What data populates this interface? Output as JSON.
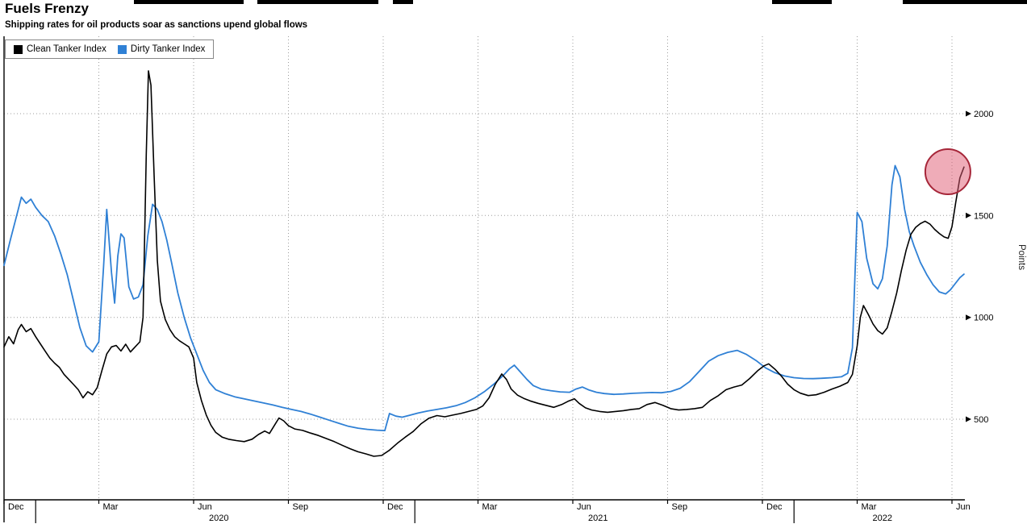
{
  "chart_data": {
    "type": "line",
    "title": "Fuels Frenzy",
    "subtitle": "Shipping rates for oil products soar as sanctions upend global flows",
    "y_axis": {
      "label": "Points",
      "ticks": [
        500,
        1000,
        1500,
        2000
      ],
      "min": 100,
      "max": 2380
    },
    "x_axis": {
      "unit": "months since Dec 2019",
      "domain": [
        0,
        30.4
      ],
      "ticks": [
        {
          "label": "Dec",
          "m": 0
        },
        {
          "label": "Mar",
          "m": 3
        },
        {
          "label": "Jun",
          "m": 6
        },
        {
          "label": "Sep",
          "m": 9
        },
        {
          "label": "Dec",
          "m": 12
        },
        {
          "label": "Mar",
          "m": 15
        },
        {
          "label": "Jun",
          "m": 18
        },
        {
          "label": "Sep",
          "m": 21
        },
        {
          "label": "Dec",
          "m": 24
        },
        {
          "label": "Mar",
          "m": 27
        },
        {
          "label": "Jun",
          "m": 30
        }
      ],
      "year_separators": [
        1,
        13,
        25
      ],
      "year_labels": [
        {
          "label": "2020",
          "m": 6.8
        },
        {
          "label": "2021",
          "m": 18.8
        },
        {
          "label": "2022",
          "m": 27.8
        }
      ]
    },
    "grid": {
      "color": "#9c9c9c",
      "dash": "1,3"
    },
    "series": [
      {
        "name": "Clean Tanker Index",
        "color": "#000000",
        "width": 1.6,
        "points": [
          [
            0,
            855
          ],
          [
            0.15,
            905
          ],
          [
            0.3,
            870
          ],
          [
            0.45,
            940
          ],
          [
            0.55,
            965
          ],
          [
            0.7,
            930
          ],
          [
            0.85,
            945
          ],
          [
            1,
            905
          ],
          [
            1.15,
            870
          ],
          [
            1.3,
            835
          ],
          [
            1.45,
            800
          ],
          [
            1.6,
            775
          ],
          [
            1.75,
            755
          ],
          [
            1.9,
            720
          ],
          [
            2.05,
            695
          ],
          [
            2.2,
            670
          ],
          [
            2.35,
            645
          ],
          [
            2.5,
            605
          ],
          [
            2.65,
            635
          ],
          [
            2.8,
            620
          ],
          [
            2.95,
            655
          ],
          [
            3.1,
            740
          ],
          [
            3.25,
            820
          ],
          [
            3.4,
            855
          ],
          [
            3.55,
            862
          ],
          [
            3.7,
            835
          ],
          [
            3.85,
            868
          ],
          [
            4,
            830
          ],
          [
            4.15,
            855
          ],
          [
            4.3,
            880
          ],
          [
            4.4,
            1000
          ],
          [
            4.5,
            1800
          ],
          [
            4.57,
            2210
          ],
          [
            4.65,
            2140
          ],
          [
            4.75,
            1700
          ],
          [
            4.85,
            1280
          ],
          [
            4.95,
            1080
          ],
          [
            5.1,
            990
          ],
          [
            5.25,
            940
          ],
          [
            5.4,
            905
          ],
          [
            5.55,
            885
          ],
          [
            5.7,
            870
          ],
          [
            5.85,
            855
          ],
          [
            6,
            800
          ],
          [
            6.1,
            680
          ],
          [
            6.25,
            590
          ],
          [
            6.4,
            520
          ],
          [
            6.55,
            470
          ],
          [
            6.7,
            435
          ],
          [
            6.9,
            412
          ],
          [
            7.1,
            402
          ],
          [
            7.35,
            395
          ],
          [
            7.6,
            390
          ],
          [
            7.85,
            402
          ],
          [
            8.05,
            425
          ],
          [
            8.25,
            442
          ],
          [
            8.4,
            430
          ],
          [
            8.55,
            468
          ],
          [
            8.7,
            506
          ],
          [
            8.85,
            492
          ],
          [
            9,
            468
          ],
          [
            9.2,
            452
          ],
          [
            9.45,
            445
          ],
          [
            9.7,
            432
          ],
          [
            9.95,
            420
          ],
          [
            10.2,
            405
          ],
          [
            10.45,
            390
          ],
          [
            10.7,
            372
          ],
          [
            10.95,
            355
          ],
          [
            11.2,
            340
          ],
          [
            11.45,
            330
          ],
          [
            11.7,
            318
          ],
          [
            11.95,
            322
          ],
          [
            12.2,
            348
          ],
          [
            12.45,
            382
          ],
          [
            12.7,
            412
          ],
          [
            12.95,
            440
          ],
          [
            13.2,
            478
          ],
          [
            13.45,
            505
          ],
          [
            13.7,
            518
          ],
          [
            13.95,
            512
          ],
          [
            14.2,
            520
          ],
          [
            14.45,
            528
          ],
          [
            14.7,
            538
          ],
          [
            14.95,
            548
          ],
          [
            15.15,
            565
          ],
          [
            15.35,
            605
          ],
          [
            15.55,
            672
          ],
          [
            15.75,
            722
          ],
          [
            15.9,
            695
          ],
          [
            16.05,
            648
          ],
          [
            16.25,
            618
          ],
          [
            16.45,
            602
          ],
          [
            16.65,
            590
          ],
          [
            16.9,
            578
          ],
          [
            17.15,
            568
          ],
          [
            17.4,
            558
          ],
          [
            17.65,
            572
          ],
          [
            17.85,
            588
          ],
          [
            18.05,
            600
          ],
          [
            18.2,
            578
          ],
          [
            18.4,
            556
          ],
          [
            18.6,
            545
          ],
          [
            18.85,
            538
          ],
          [
            19.1,
            534
          ],
          [
            19.35,
            538
          ],
          [
            19.6,
            542
          ],
          [
            19.85,
            548
          ],
          [
            20.1,
            552
          ],
          [
            20.35,
            572
          ],
          [
            20.6,
            582
          ],
          [
            20.85,
            568
          ],
          [
            21.1,
            552
          ],
          [
            21.35,
            545
          ],
          [
            21.6,
            548
          ],
          [
            21.85,
            552
          ],
          [
            22.1,
            558
          ],
          [
            22.35,
            592
          ],
          [
            22.6,
            615
          ],
          [
            22.85,
            645
          ],
          [
            23.1,
            658
          ],
          [
            23.35,
            668
          ],
          [
            23.6,
            700
          ],
          [
            23.85,
            738
          ],
          [
            24.05,
            762
          ],
          [
            24.2,
            772
          ],
          [
            24.4,
            745
          ],
          [
            24.6,
            712
          ],
          [
            24.8,
            672
          ],
          [
            25,
            645
          ],
          [
            25.2,
            628
          ],
          [
            25.45,
            616
          ],
          [
            25.7,
            620
          ],
          [
            25.95,
            632
          ],
          [
            26.2,
            648
          ],
          [
            26.45,
            662
          ],
          [
            26.7,
            680
          ],
          [
            26.85,
            720
          ],
          [
            27,
            860
          ],
          [
            27.1,
            1000
          ],
          [
            27.2,
            1058
          ],
          [
            27.35,
            1015
          ],
          [
            27.5,
            968
          ],
          [
            27.65,
            935
          ],
          [
            27.8,
            918
          ],
          [
            27.95,
            948
          ],
          [
            28.1,
            1030
          ],
          [
            28.25,
            1120
          ],
          [
            28.4,
            1230
          ],
          [
            28.55,
            1330
          ],
          [
            28.7,
            1408
          ],
          [
            28.85,
            1442
          ],
          [
            29,
            1460
          ],
          [
            29.15,
            1472
          ],
          [
            29.3,
            1458
          ],
          [
            29.45,
            1432
          ],
          [
            29.6,
            1412
          ],
          [
            29.75,
            1395
          ],
          [
            29.88,
            1388
          ],
          [
            30,
            1445
          ],
          [
            30.12,
            1565
          ],
          [
            30.25,
            1685
          ],
          [
            30.38,
            1738
          ]
        ]
      },
      {
        "name": "Dirty Tanker Index",
        "color": "#2f80d5",
        "width": 1.8,
        "points": [
          [
            0,
            1255
          ],
          [
            0.2,
            1380
          ],
          [
            0.4,
            1500
          ],
          [
            0.55,
            1590
          ],
          [
            0.7,
            1560
          ],
          [
            0.85,
            1580
          ],
          [
            1,
            1540
          ],
          [
            1.2,
            1500
          ],
          [
            1.4,
            1470
          ],
          [
            1.6,
            1400
          ],
          [
            1.8,
            1310
          ],
          [
            2,
            1210
          ],
          [
            2.2,
            1080
          ],
          [
            2.4,
            950
          ],
          [
            2.6,
            860
          ],
          [
            2.8,
            830
          ],
          [
            3,
            880
          ],
          [
            3.15,
            1250
          ],
          [
            3.25,
            1530
          ],
          [
            3.4,
            1220
          ],
          [
            3.5,
            1070
          ],
          [
            3.6,
            1300
          ],
          [
            3.7,
            1410
          ],
          [
            3.8,
            1390
          ],
          [
            3.95,
            1150
          ],
          [
            4.1,
            1090
          ],
          [
            4.25,
            1100
          ],
          [
            4.4,
            1160
          ],
          [
            4.55,
            1400
          ],
          [
            4.7,
            1555
          ],
          [
            4.85,
            1530
          ],
          [
            5,
            1470
          ],
          [
            5.15,
            1380
          ],
          [
            5.3,
            1270
          ],
          [
            5.5,
            1120
          ],
          [
            5.7,
            1000
          ],
          [
            5.9,
            900
          ],
          [
            6.1,
            820
          ],
          [
            6.3,
            740
          ],
          [
            6.5,
            680
          ],
          [
            6.7,
            645
          ],
          [
            7,
            625
          ],
          [
            7.3,
            610
          ],
          [
            7.6,
            600
          ],
          [
            7.9,
            590
          ],
          [
            8.2,
            580
          ],
          [
            8.5,
            570
          ],
          [
            8.8,
            558
          ],
          [
            9.1,
            548
          ],
          [
            9.4,
            538
          ],
          [
            9.7,
            525
          ],
          [
            10,
            510
          ],
          [
            10.3,
            495
          ],
          [
            10.6,
            480
          ],
          [
            10.9,
            465
          ],
          [
            11.2,
            456
          ],
          [
            11.5,
            450
          ],
          [
            11.8,
            446
          ],
          [
            12.05,
            444
          ],
          [
            12.2,
            528
          ],
          [
            12.4,
            515
          ],
          [
            12.6,
            510
          ],
          [
            12.8,
            518
          ],
          [
            13.1,
            530
          ],
          [
            13.4,
            540
          ],
          [
            13.7,
            548
          ],
          [
            14,
            556
          ],
          [
            14.3,
            566
          ],
          [
            14.6,
            582
          ],
          [
            14.9,
            605
          ],
          [
            15.2,
            635
          ],
          [
            15.5,
            672
          ],
          [
            15.8,
            715
          ],
          [
            16,
            748
          ],
          [
            16.15,
            765
          ],
          [
            16.35,
            730
          ],
          [
            16.55,
            695
          ],
          [
            16.75,
            665
          ],
          [
            17,
            648
          ],
          [
            17.3,
            640
          ],
          [
            17.6,
            634
          ],
          [
            17.9,
            632
          ],
          [
            18.1,
            648
          ],
          [
            18.3,
            658
          ],
          [
            18.5,
            644
          ],
          [
            18.75,
            632
          ],
          [
            19,
            626
          ],
          [
            19.3,
            622
          ],
          [
            19.6,
            624
          ],
          [
            19.9,
            627
          ],
          [
            20.2,
            629
          ],
          [
            20.5,
            631
          ],
          [
            20.8,
            630
          ],
          [
            21.1,
            636
          ],
          [
            21.4,
            652
          ],
          [
            21.7,
            685
          ],
          [
            22,
            735
          ],
          [
            22.3,
            785
          ],
          [
            22.6,
            812
          ],
          [
            22.9,
            828
          ],
          [
            23.2,
            838
          ],
          [
            23.5,
            818
          ],
          [
            23.8,
            788
          ],
          [
            24.1,
            752
          ],
          [
            24.4,
            728
          ],
          [
            24.7,
            712
          ],
          [
            25,
            704
          ],
          [
            25.3,
            700
          ],
          [
            25.6,
            699
          ],
          [
            25.9,
            701
          ],
          [
            26.2,
            704
          ],
          [
            26.5,
            708
          ],
          [
            26.7,
            725
          ],
          [
            26.85,
            850
          ],
          [
            27,
            1515
          ],
          [
            27.15,
            1470
          ],
          [
            27.3,
            1290
          ],
          [
            27.5,
            1165
          ],
          [
            27.65,
            1140
          ],
          [
            27.8,
            1190
          ],
          [
            27.95,
            1350
          ],
          [
            28.1,
            1650
          ],
          [
            28.2,
            1745
          ],
          [
            28.35,
            1690
          ],
          [
            28.5,
            1530
          ],
          [
            28.65,
            1420
          ],
          [
            28.8,
            1350
          ],
          [
            29,
            1270
          ],
          [
            29.2,
            1210
          ],
          [
            29.4,
            1160
          ],
          [
            29.6,
            1125
          ],
          [
            29.8,
            1115
          ],
          [
            29.95,
            1135
          ],
          [
            30.1,
            1165
          ],
          [
            30.25,
            1195
          ],
          [
            30.38,
            1212
          ]
        ]
      }
    ],
    "annotation": {
      "type": "circle",
      "m": 29.87,
      "value": 1715,
      "radius": 28,
      "fill": "#e05a72",
      "fill_opacity": 0.5,
      "stroke": "#a62639",
      "stroke_width": 2
    },
    "legend_position": "top-left"
  }
}
